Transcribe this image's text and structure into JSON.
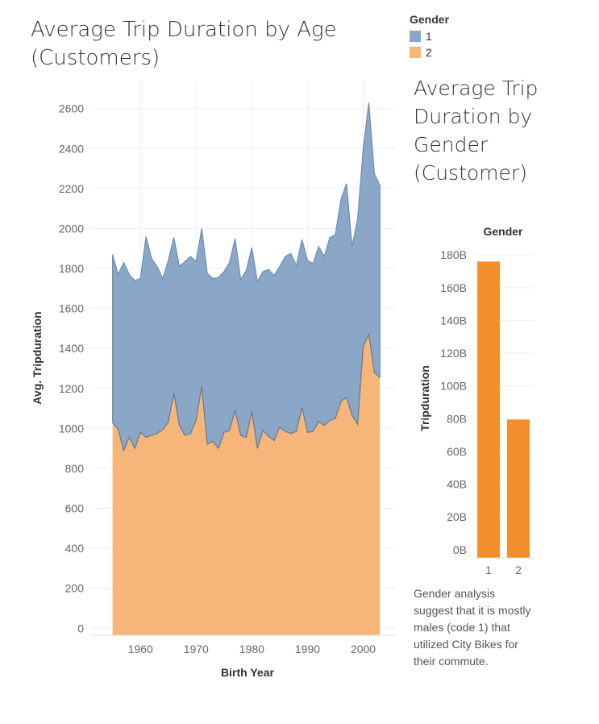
{
  "legend": {
    "title": "Gender",
    "items": [
      {
        "label": "1",
        "color": "#8aa7c7"
      },
      {
        "label": "2",
        "color": "#f6b67a"
      }
    ]
  },
  "note": "Gender analysis suggest that it is mostly males (code 1) that utilized City Bikes for their commute.",
  "chart_data": [
    {
      "type": "area",
      "title": "Average Trip Duration by Age (Customers)",
      "xlabel": "Birth Year",
      "ylabel": "Avg. Tripduration",
      "xlim": [
        1951,
        2006
      ],
      "ylim": [
        -35,
        2740
      ],
      "xticks": [
        1960,
        1970,
        1980,
        1990,
        2000
      ],
      "yticks": [
        0,
        200,
        400,
        600,
        800,
        1000,
        1200,
        1400,
        1600,
        1800,
        2000,
        2200,
        2400,
        2600
      ],
      "grid": true,
      "x": [
        1955,
        1956,
        1957,
        1958,
        1959,
        1960,
        1961,
        1962,
        1963,
        1964,
        1965,
        1966,
        1967,
        1968,
        1969,
        1970,
        1971,
        1972,
        1973,
        1974,
        1975,
        1976,
        1977,
        1978,
        1979,
        1980,
        1981,
        1982,
        1983,
        1984,
        1985,
        1986,
        1987,
        1988,
        1989,
        1990,
        1991,
        1992,
        1993,
        1994,
        1995,
        1996,
        1997,
        1998,
        1999,
        2000,
        2001,
        2002,
        2003
      ],
      "series": [
        {
          "name": "1",
          "color": "#8aa7c7",
          "values": [
            1870,
            1770,
            1830,
            1770,
            1740,
            1750,
            1960,
            1850,
            1810,
            1750,
            1840,
            1955,
            1810,
            1835,
            1860,
            1835,
            2000,
            1775,
            1750,
            1755,
            1785,
            1830,
            1950,
            1745,
            1790,
            1905,
            1735,
            1785,
            1795,
            1765,
            1810,
            1860,
            1875,
            1815,
            1945,
            1840,
            1825,
            1910,
            1860,
            1955,
            1970,
            2145,
            2225,
            1910,
            2050,
            2400,
            2630,
            2275,
            2215
          ]
        },
        {
          "name": "2",
          "color": "#f6b67a",
          "values": [
            1030,
            995,
            890,
            955,
            900,
            980,
            955,
            965,
            975,
            995,
            1030,
            1175,
            1015,
            965,
            975,
            1040,
            1210,
            920,
            935,
            900,
            980,
            990,
            1090,
            965,
            955,
            1085,
            900,
            990,
            960,
            940,
            1005,
            985,
            975,
            985,
            1105,
            980,
            985,
            1035,
            1015,
            1040,
            1050,
            1135,
            1155,
            1065,
            1020,
            1410,
            1470,
            1280,
            1255
          ]
        }
      ]
    },
    {
      "type": "bar",
      "title": "Average Trip Duration by Gender (Customer)",
      "xlabel": "Gender",
      "ylabel": "Tripduration",
      "categories": [
        "1",
        "2"
      ],
      "values": [
        176,
        79.5
      ],
      "unit": "B",
      "ylim": [
        -5,
        188
      ],
      "yticks": [
        0,
        20,
        40,
        60,
        80,
        100,
        120,
        140,
        160,
        180
      ],
      "tick_suffix": "B",
      "color": "#f28e2b",
      "grid": true
    }
  ]
}
